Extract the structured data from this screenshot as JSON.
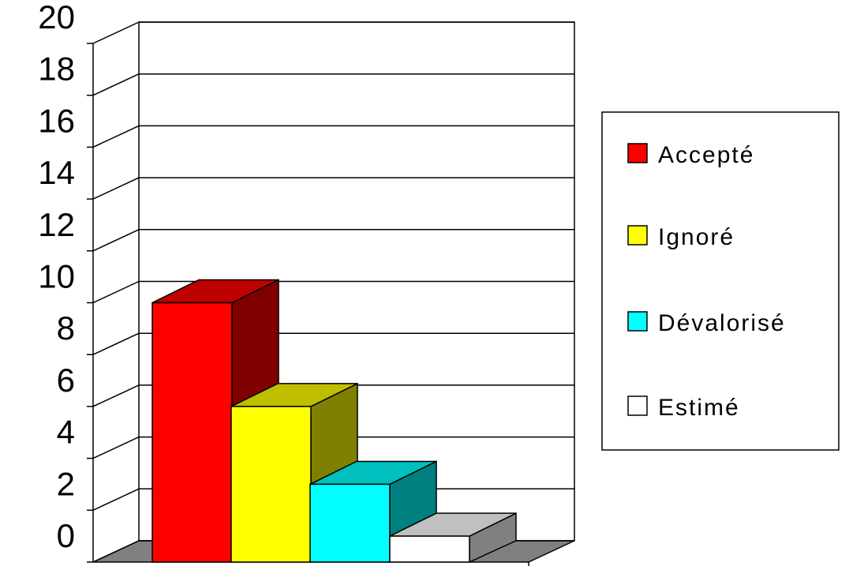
{
  "chart_data": {
    "type": "bar",
    "title": "",
    "xlabel": "",
    "ylabel": "",
    "ylim": [
      0,
      20
    ],
    "yticks": [
      0,
      2,
      4,
      6,
      8,
      10,
      12,
      14,
      16,
      18,
      20
    ],
    "grid": true,
    "legend_position": "right",
    "series": [
      {
        "name": "Accepté",
        "value": 10,
        "color": "#ff0000"
      },
      {
        "name": "Ignoré",
        "value": 6,
        "color": "#ffff00"
      },
      {
        "name": "Dévalorisé",
        "value": 3,
        "color": "#00ffff"
      },
      {
        "name": "Estimé",
        "value": 1,
        "color": "#ffffff"
      }
    ]
  }
}
